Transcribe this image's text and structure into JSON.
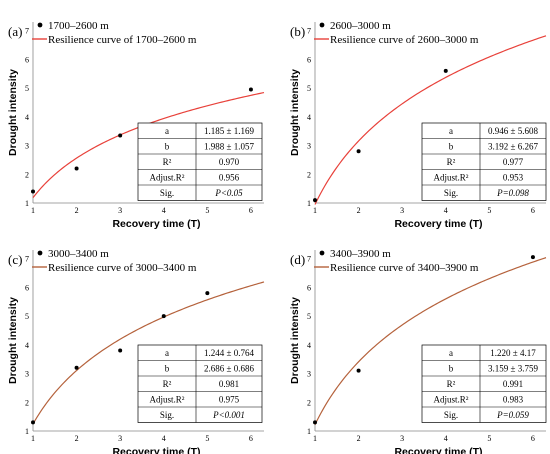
{
  "chart_data": [
    {
      "type": "scatter",
      "panel_label": "(a)",
      "legend": [
        "1700–2600 m",
        "Resilience curve of 1700–2600 m"
      ],
      "xlabel": "Recovery time (T)",
      "ylabel": "Drought intensity",
      "xlim": [
        1,
        6.3
      ],
      "ylim": [
        1,
        7.3
      ],
      "xticks": [
        "1",
        "2",
        "3",
        "4",
        "5",
        "6"
      ],
      "yticks": [
        "1",
        "2",
        "3",
        "4",
        "5",
        "6",
        "7"
      ],
      "curve_color": "#e8413a",
      "points": {
        "x": [
          1,
          2,
          3,
          6
        ],
        "y": [
          1.4,
          2.2,
          3.35,
          4.95
        ]
      },
      "curve": {
        "a": 1.185,
        "b": 1.988
      },
      "stats": [
        [
          "a",
          "1.185 ± 1.169"
        ],
        [
          "b",
          "1.988 ± 1.057"
        ],
        [
          "R²",
          "0.970"
        ],
        [
          "Adjust.R²",
          "0.956"
        ],
        [
          "Sig.",
          "P<0.05"
        ]
      ]
    },
    {
      "type": "scatter",
      "panel_label": "(b)",
      "legend": [
        "2600–3000 m",
        "Resilience curve of 2600–3000 m"
      ],
      "xlabel": "Recovery time (T)",
      "ylabel": "Drought intensity",
      "xlim": [
        1,
        6.3
      ],
      "ylim": [
        1,
        7.3
      ],
      "xticks": [
        "1",
        "2",
        "3",
        "4",
        "5",
        "6"
      ],
      "yticks": [
        "1",
        "2",
        "3",
        "4",
        "5",
        "6",
        "7"
      ],
      "curve_color": "#e8413a",
      "points": {
        "x": [
          1,
          2,
          4
        ],
        "y": [
          1.1,
          2.8,
          5.6
        ]
      },
      "curve": {
        "a": 0.946,
        "b": 3.192
      },
      "stats": [
        [
          "a",
          "0.946 ± 5.608"
        ],
        [
          "b",
          "3.192 ± 6.267"
        ],
        [
          "R²",
          "0.977"
        ],
        [
          "Adjust.R²",
          "0.953"
        ],
        [
          "Sig.",
          "P=0.098"
        ]
      ]
    },
    {
      "type": "scatter",
      "panel_label": "(c)",
      "legend": [
        "3000–3400 m",
        "Resilience curve of 3000–3400 m"
      ],
      "xlabel": "Recovery time (T)",
      "ylabel": "Drought intensity",
      "xlim": [
        1,
        6.3
      ],
      "ylim": [
        1,
        7.3
      ],
      "xticks": [
        "1",
        "2",
        "3",
        "4",
        "5",
        "6"
      ],
      "yticks": [
        "1",
        "2",
        "3",
        "4",
        "5",
        "6",
        "7"
      ],
      "curve_color": "#b5623c",
      "points": {
        "x": [
          1,
          2,
          3,
          4,
          5
        ],
        "y": [
          1.3,
          3.2,
          3.8,
          5.0,
          5.8
        ]
      },
      "curve": {
        "a": 1.244,
        "b": 2.686
      },
      "stats": [
        [
          "a",
          "1.244 ± 0.764"
        ],
        [
          "b",
          "2.686 ± 0.686"
        ],
        [
          "R²",
          "0.981"
        ],
        [
          "Adjust.R²",
          "0.975"
        ],
        [
          "Sig.",
          "P<0.001"
        ]
      ]
    },
    {
      "type": "scatter",
      "panel_label": "(d)",
      "legend": [
        "3400–3900 m",
        "Resilience curve of 3400–3900 m"
      ],
      "xlabel": "Recovery time (T)",
      "ylabel": "Drought intensity",
      "xlim": [
        1,
        6.3
      ],
      "ylim": [
        1,
        7.3
      ],
      "xticks": [
        "1",
        "2",
        "3",
        "4",
        "5",
        "6"
      ],
      "yticks": [
        "1",
        "2",
        "3",
        "4",
        "5",
        "6",
        "7"
      ],
      "curve_color": "#b5623c",
      "points": {
        "x": [
          1,
          2,
          6
        ],
        "y": [
          1.3,
          3.1,
          7.05
        ]
      },
      "curve": {
        "a": 1.22,
        "b": 3.159
      },
      "stats": [
        [
          "a",
          "1.220 ± 4.17"
        ],
        [
          "b",
          "3.159 ± 3.759"
        ],
        [
          "R²",
          "0.991"
        ],
        [
          "Adjust.R²",
          "0.983"
        ],
        [
          "Sig.",
          "P=0.059"
        ]
      ]
    }
  ]
}
